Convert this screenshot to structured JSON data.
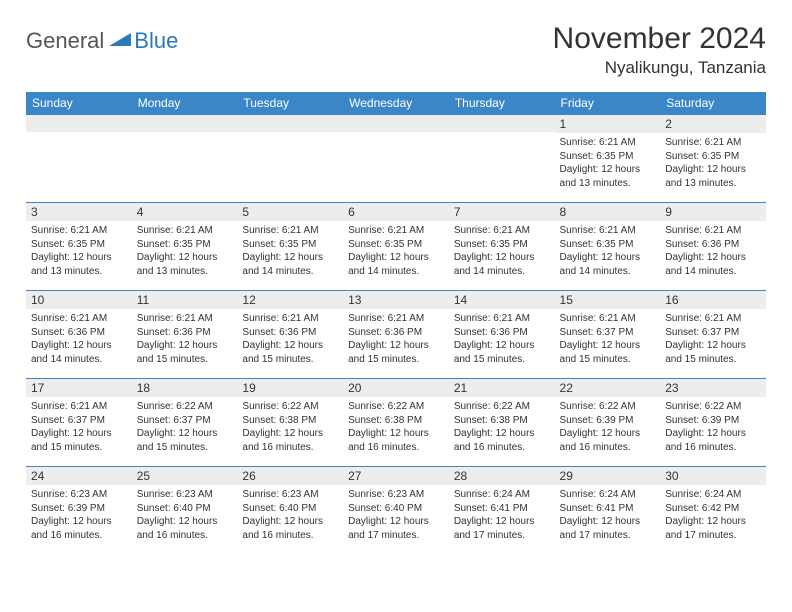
{
  "brand": {
    "general": "General",
    "blue": "Blue"
  },
  "title": "November 2024",
  "location": "Nyalikungu, Tanzania",
  "colors": {
    "header_bg": "#3b86c6",
    "header_text": "#ffffff",
    "row_border": "#3b86c6",
    "daynum_bg": "#ededed",
    "text": "#333333",
    "logo_gray": "#555555",
    "logo_blue": "#2a7ab8",
    "background": "#ffffff"
  },
  "day_labels": [
    "Sunday",
    "Monday",
    "Tuesday",
    "Wednesday",
    "Thursday",
    "Friday",
    "Saturday"
  ],
  "weeks": [
    [
      {
        "n": "",
        "sr": "",
        "ss": "",
        "dl": ""
      },
      {
        "n": "",
        "sr": "",
        "ss": "",
        "dl": ""
      },
      {
        "n": "",
        "sr": "",
        "ss": "",
        "dl": ""
      },
      {
        "n": "",
        "sr": "",
        "ss": "",
        "dl": ""
      },
      {
        "n": "",
        "sr": "",
        "ss": "",
        "dl": ""
      },
      {
        "n": "1",
        "sr": "Sunrise: 6:21 AM",
        "ss": "Sunset: 6:35 PM",
        "dl": "Daylight: 12 hours and 13 minutes."
      },
      {
        "n": "2",
        "sr": "Sunrise: 6:21 AM",
        "ss": "Sunset: 6:35 PM",
        "dl": "Daylight: 12 hours and 13 minutes."
      }
    ],
    [
      {
        "n": "3",
        "sr": "Sunrise: 6:21 AM",
        "ss": "Sunset: 6:35 PM",
        "dl": "Daylight: 12 hours and 13 minutes."
      },
      {
        "n": "4",
        "sr": "Sunrise: 6:21 AM",
        "ss": "Sunset: 6:35 PM",
        "dl": "Daylight: 12 hours and 13 minutes."
      },
      {
        "n": "5",
        "sr": "Sunrise: 6:21 AM",
        "ss": "Sunset: 6:35 PM",
        "dl": "Daylight: 12 hours and 14 minutes."
      },
      {
        "n": "6",
        "sr": "Sunrise: 6:21 AM",
        "ss": "Sunset: 6:35 PM",
        "dl": "Daylight: 12 hours and 14 minutes."
      },
      {
        "n": "7",
        "sr": "Sunrise: 6:21 AM",
        "ss": "Sunset: 6:35 PM",
        "dl": "Daylight: 12 hours and 14 minutes."
      },
      {
        "n": "8",
        "sr": "Sunrise: 6:21 AM",
        "ss": "Sunset: 6:35 PM",
        "dl": "Daylight: 12 hours and 14 minutes."
      },
      {
        "n": "9",
        "sr": "Sunrise: 6:21 AM",
        "ss": "Sunset: 6:36 PM",
        "dl": "Daylight: 12 hours and 14 minutes."
      }
    ],
    [
      {
        "n": "10",
        "sr": "Sunrise: 6:21 AM",
        "ss": "Sunset: 6:36 PM",
        "dl": "Daylight: 12 hours and 14 minutes."
      },
      {
        "n": "11",
        "sr": "Sunrise: 6:21 AM",
        "ss": "Sunset: 6:36 PM",
        "dl": "Daylight: 12 hours and 15 minutes."
      },
      {
        "n": "12",
        "sr": "Sunrise: 6:21 AM",
        "ss": "Sunset: 6:36 PM",
        "dl": "Daylight: 12 hours and 15 minutes."
      },
      {
        "n": "13",
        "sr": "Sunrise: 6:21 AM",
        "ss": "Sunset: 6:36 PM",
        "dl": "Daylight: 12 hours and 15 minutes."
      },
      {
        "n": "14",
        "sr": "Sunrise: 6:21 AM",
        "ss": "Sunset: 6:36 PM",
        "dl": "Daylight: 12 hours and 15 minutes."
      },
      {
        "n": "15",
        "sr": "Sunrise: 6:21 AM",
        "ss": "Sunset: 6:37 PM",
        "dl": "Daylight: 12 hours and 15 minutes."
      },
      {
        "n": "16",
        "sr": "Sunrise: 6:21 AM",
        "ss": "Sunset: 6:37 PM",
        "dl": "Daylight: 12 hours and 15 minutes."
      }
    ],
    [
      {
        "n": "17",
        "sr": "Sunrise: 6:21 AM",
        "ss": "Sunset: 6:37 PM",
        "dl": "Daylight: 12 hours and 15 minutes."
      },
      {
        "n": "18",
        "sr": "Sunrise: 6:22 AM",
        "ss": "Sunset: 6:37 PM",
        "dl": "Daylight: 12 hours and 15 minutes."
      },
      {
        "n": "19",
        "sr": "Sunrise: 6:22 AM",
        "ss": "Sunset: 6:38 PM",
        "dl": "Daylight: 12 hours and 16 minutes."
      },
      {
        "n": "20",
        "sr": "Sunrise: 6:22 AM",
        "ss": "Sunset: 6:38 PM",
        "dl": "Daylight: 12 hours and 16 minutes."
      },
      {
        "n": "21",
        "sr": "Sunrise: 6:22 AM",
        "ss": "Sunset: 6:38 PM",
        "dl": "Daylight: 12 hours and 16 minutes."
      },
      {
        "n": "22",
        "sr": "Sunrise: 6:22 AM",
        "ss": "Sunset: 6:39 PM",
        "dl": "Daylight: 12 hours and 16 minutes."
      },
      {
        "n": "23",
        "sr": "Sunrise: 6:22 AM",
        "ss": "Sunset: 6:39 PM",
        "dl": "Daylight: 12 hours and 16 minutes."
      }
    ],
    [
      {
        "n": "24",
        "sr": "Sunrise: 6:23 AM",
        "ss": "Sunset: 6:39 PM",
        "dl": "Daylight: 12 hours and 16 minutes."
      },
      {
        "n": "25",
        "sr": "Sunrise: 6:23 AM",
        "ss": "Sunset: 6:40 PM",
        "dl": "Daylight: 12 hours and 16 minutes."
      },
      {
        "n": "26",
        "sr": "Sunrise: 6:23 AM",
        "ss": "Sunset: 6:40 PM",
        "dl": "Daylight: 12 hours and 16 minutes."
      },
      {
        "n": "27",
        "sr": "Sunrise: 6:23 AM",
        "ss": "Sunset: 6:40 PM",
        "dl": "Daylight: 12 hours and 17 minutes."
      },
      {
        "n": "28",
        "sr": "Sunrise: 6:24 AM",
        "ss": "Sunset: 6:41 PM",
        "dl": "Daylight: 12 hours and 17 minutes."
      },
      {
        "n": "29",
        "sr": "Sunrise: 6:24 AM",
        "ss": "Sunset: 6:41 PM",
        "dl": "Daylight: 12 hours and 17 minutes."
      },
      {
        "n": "30",
        "sr": "Sunrise: 6:24 AM",
        "ss": "Sunset: 6:42 PM",
        "dl": "Daylight: 12 hours and 17 minutes."
      }
    ]
  ]
}
